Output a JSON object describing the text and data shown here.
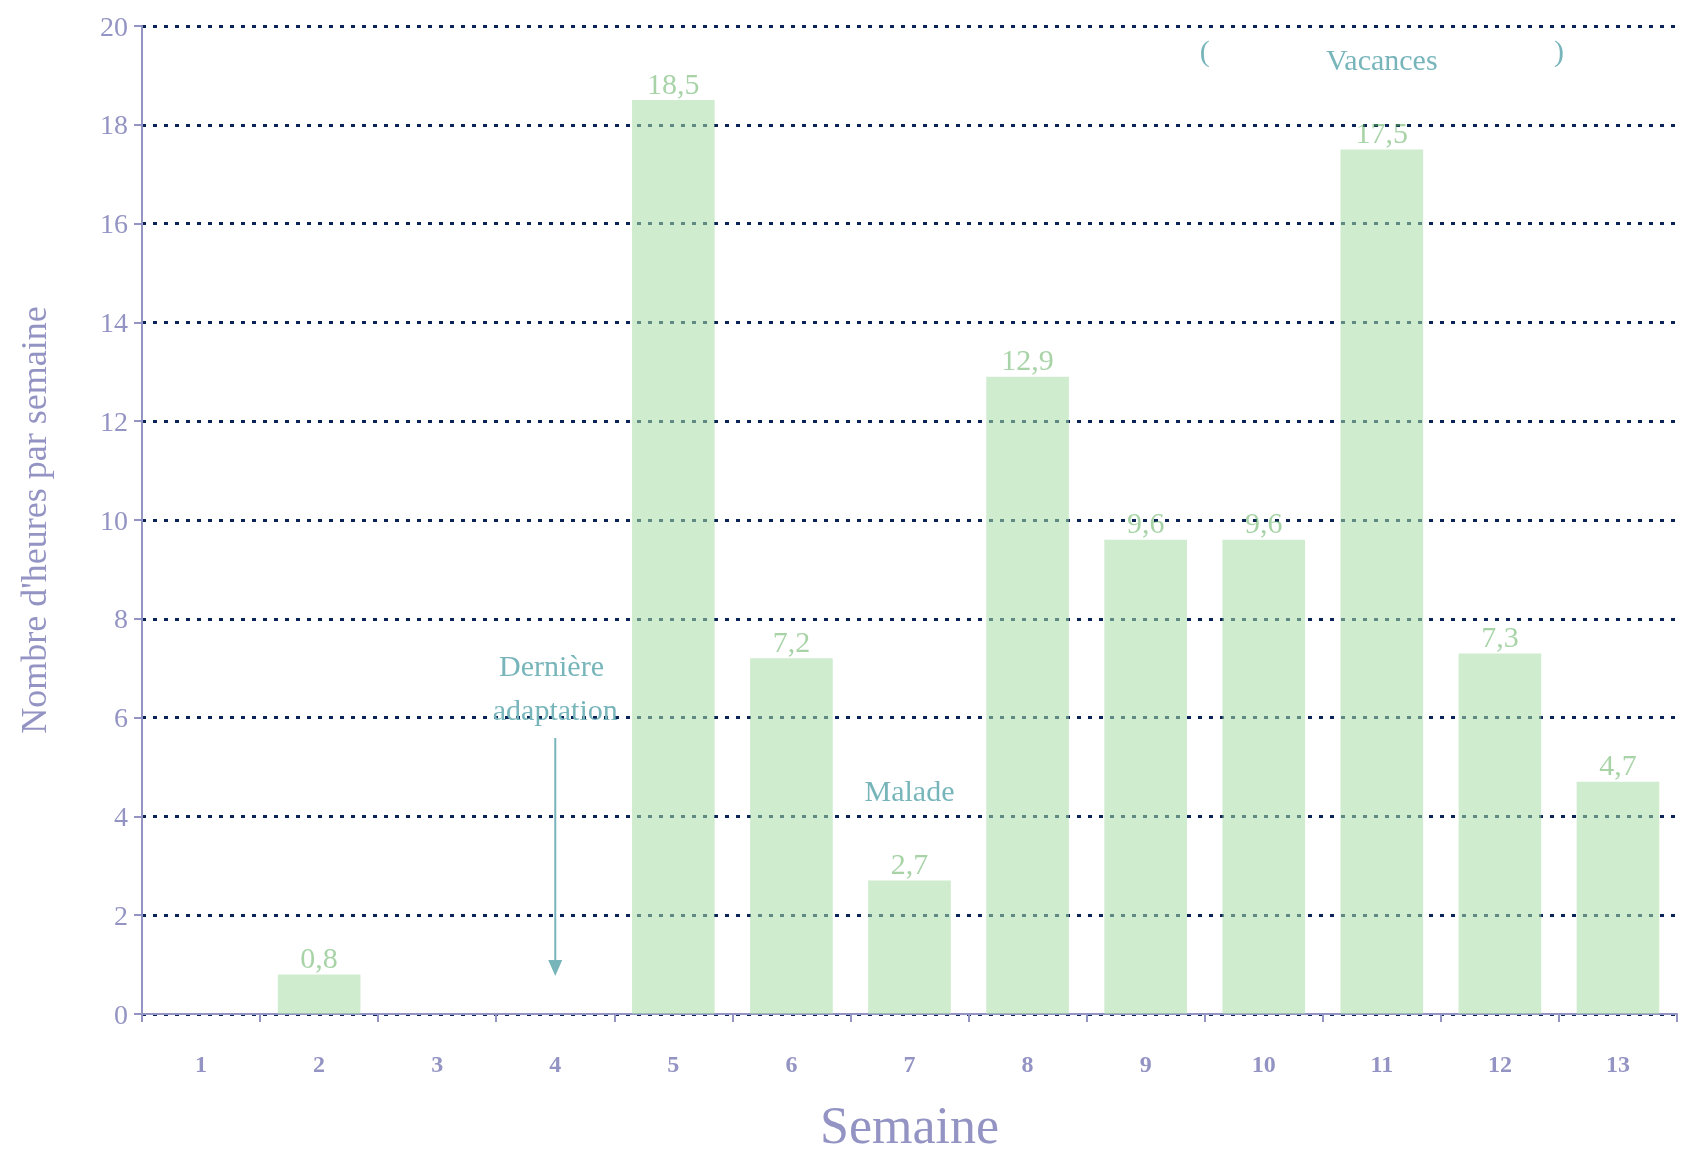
{
  "chart_data": {
    "type": "bar",
    "xlabel": "Semaine",
    "ylabel": "Nombre d'heures par semaine",
    "categories": [
      "1",
      "2",
      "3",
      "4",
      "5",
      "6",
      "7",
      "8",
      "9",
      "10",
      "11",
      "12",
      "13"
    ],
    "values": [
      null,
      0.8,
      null,
      null,
      18.5,
      7.2,
      2.7,
      12.9,
      9.6,
      9.6,
      17.5,
      7.3,
      4.7
    ],
    "value_labels": [
      null,
      "0,8",
      null,
      null,
      "18,5",
      "7,2",
      "2,7",
      "12,9",
      "9,6",
      "9,6",
      "17,5",
      "7,3",
      "4,7"
    ],
    "color": "#a8dca8",
    "ylim": [
      0,
      20
    ],
    "yticks": [
      0,
      2,
      4,
      6,
      8,
      10,
      12,
      14,
      16,
      18,
      20
    ],
    "grid": "y",
    "annotations": [
      "Dernière adaptation",
      {
        "text": "Malade",
        "x": "7",
        "y": 2.7
      },
      "(",
      {
        "text": "Vacances",
        "x": "11",
        "y": 17.5
      },
      ")"
    ]
  }
}
